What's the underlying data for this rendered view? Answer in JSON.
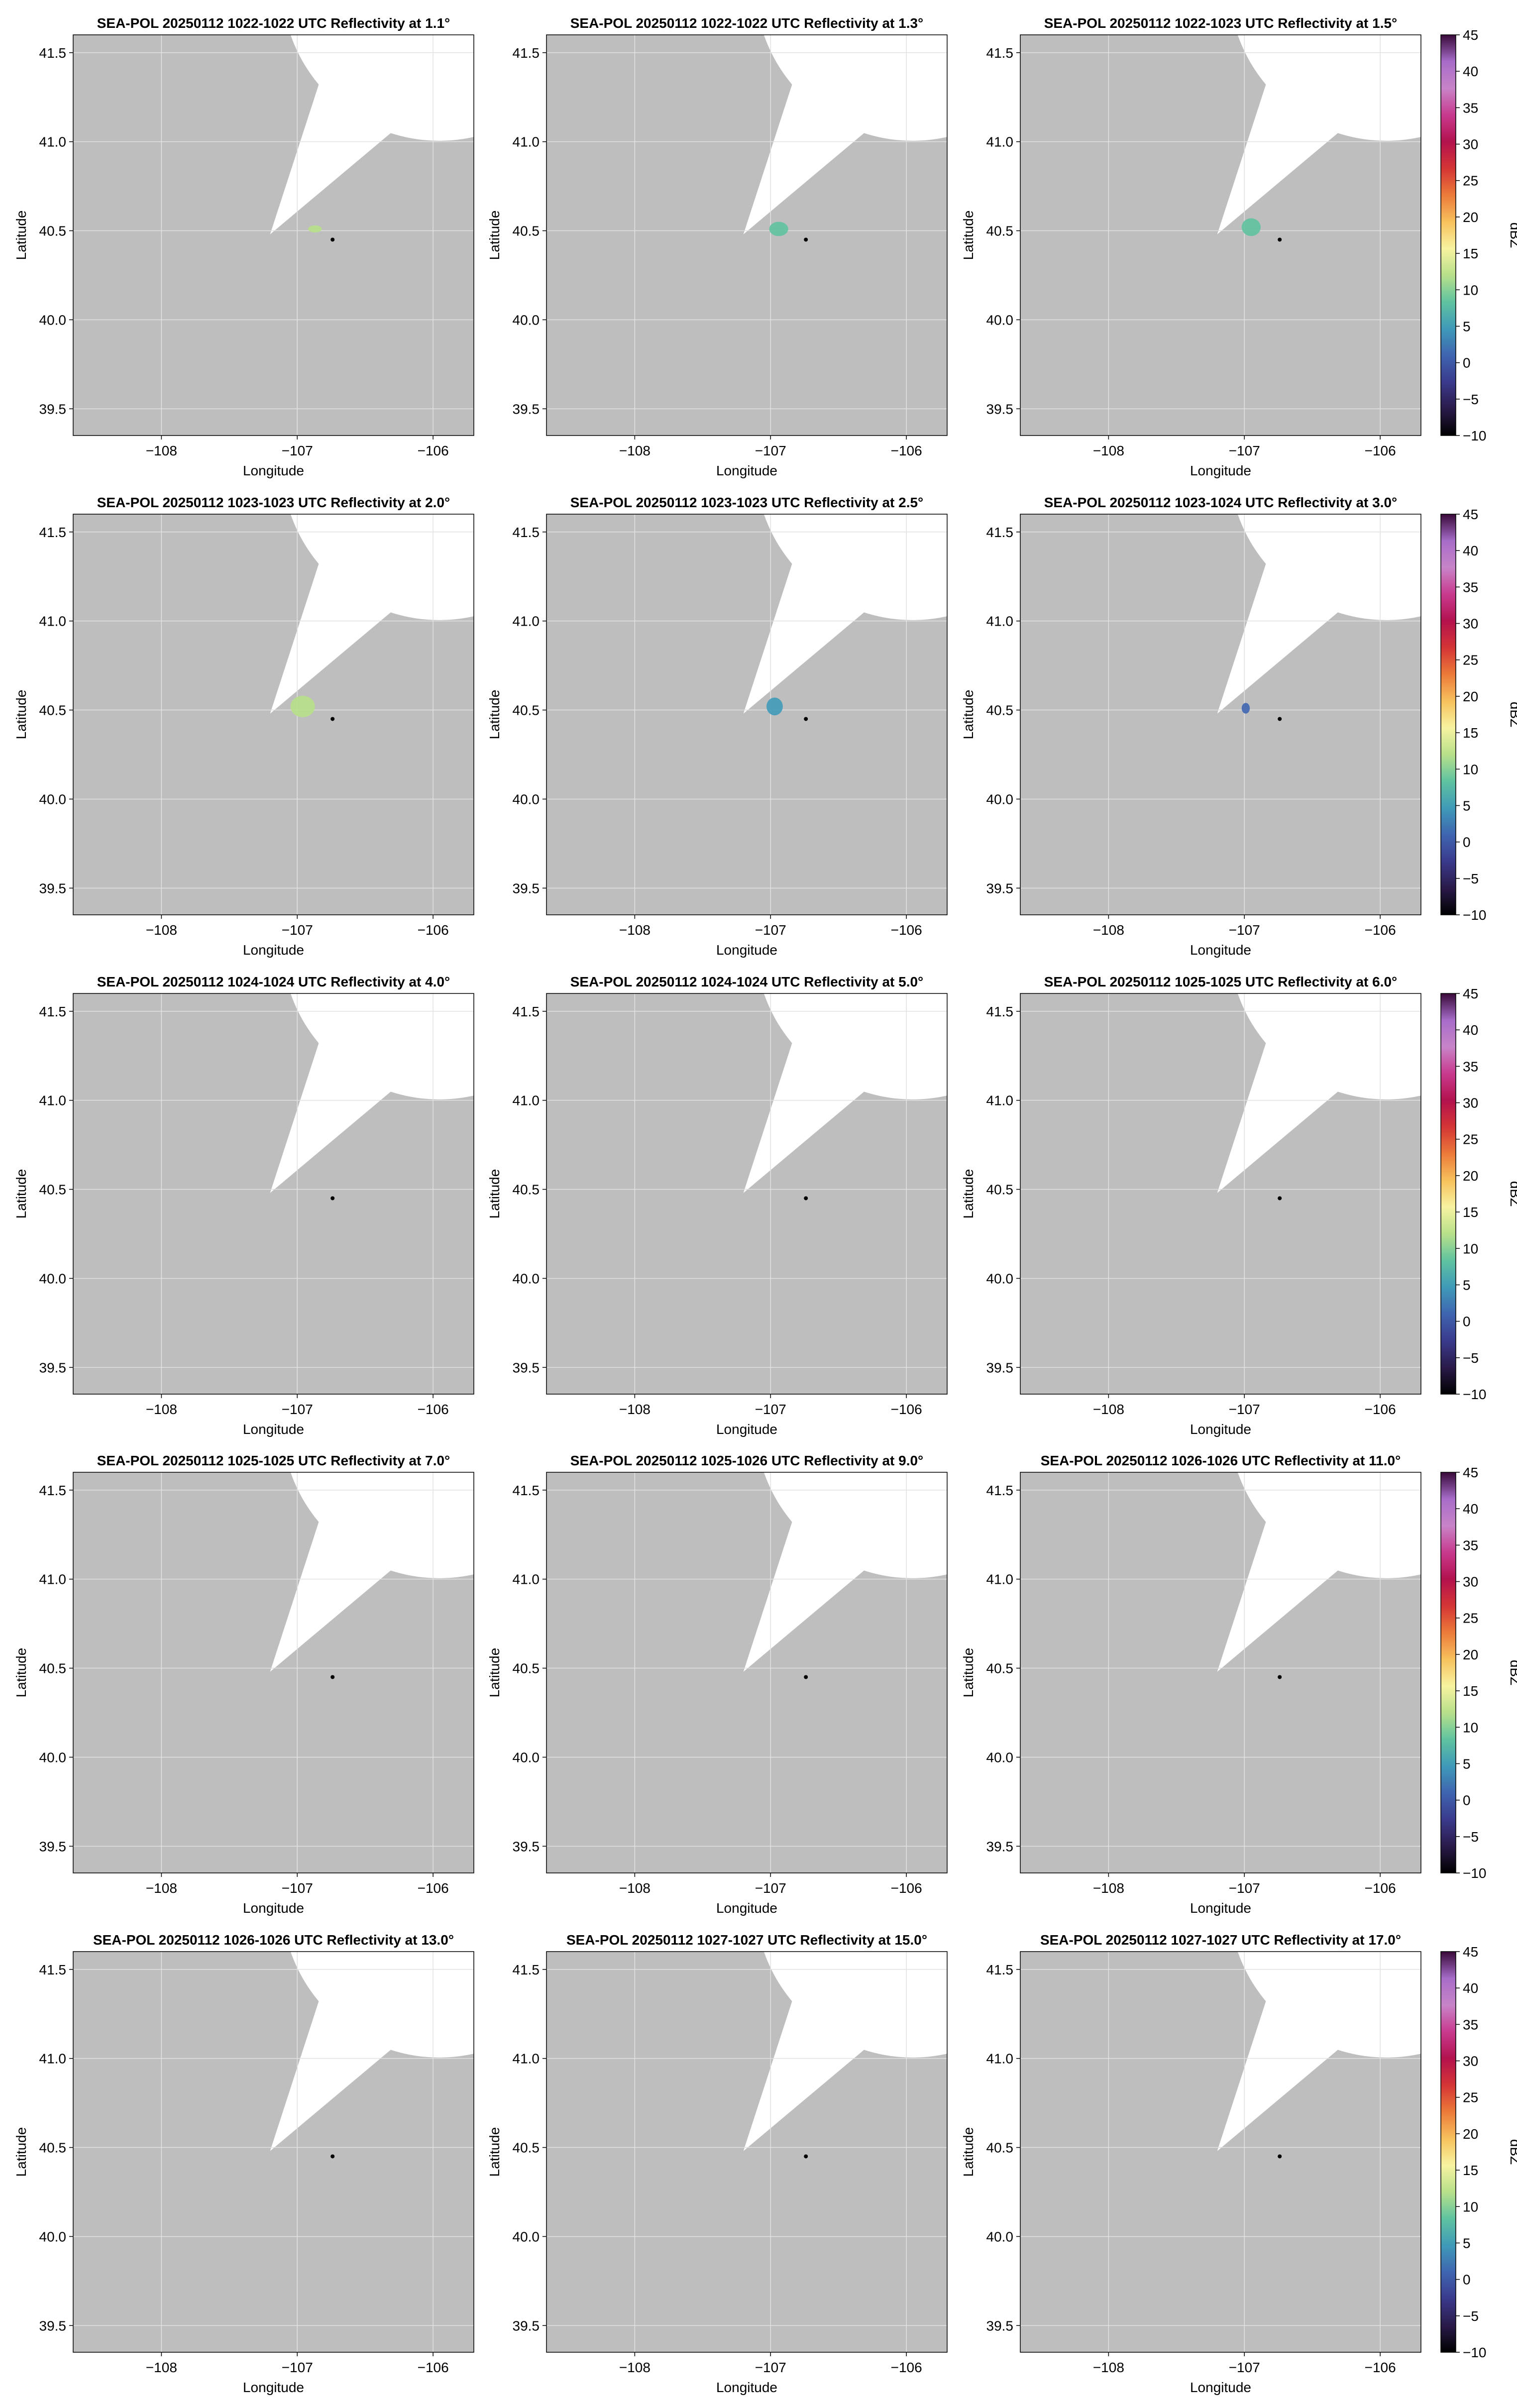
{
  "figure": {
    "title": ""
  },
  "colors": {
    "mask_fill": "#bebebe",
    "coverage_fill": "#ffffff",
    "grid": "#e2e2e2",
    "radar_marker": "#000000"
  },
  "colorbar": {
    "label": "dBZ",
    "ticks": [
      -10,
      -5,
      0,
      5,
      10,
      15,
      20,
      25,
      30,
      35,
      40,
      45
    ],
    "tick_labels": [
      "−10",
      "−5",
      "0",
      "5",
      "10",
      "15",
      "20",
      "25",
      "30",
      "35",
      "40",
      "45"
    ],
    "range": [
      -10,
      45
    ],
    "colormap": [
      "#000000",
      "#2a1a4a",
      "#3a3a8c",
      "#3f65b0",
      "#3f9ab8",
      "#5fc3a0",
      "#b8e08a",
      "#f7f3a0",
      "#f7c15c",
      "#ec7a3a",
      "#d43535",
      "#b3124e",
      "#c83a8e",
      "#c884c8",
      "#a66cc8",
      "#3a0a3a"
    ]
  },
  "chart_data": [
    {
      "type": "heatmap",
      "title": "SEA-POL 20250112 1022-1022 UTC Reflectivity at 1.1°",
      "xlabel": "Longitude",
      "ylabel": "Latitude",
      "xlim": [
        -108.65,
        -105.7
      ],
      "ylim": [
        39.35,
        41.6
      ],
      "xticks": [
        -108,
        -107,
        -106
      ],
      "xtick_labels": [
        "−108",
        "−107",
        "−106"
      ],
      "yticks": [
        39.5,
        40.0,
        40.5,
        41.0,
        41.5
      ],
      "ytick_labels": [
        "39.5",
        "40.0",
        "40.5",
        "41.0",
        "41.5"
      ],
      "grid": true,
      "radar_location": {
        "lon": -106.74,
        "lat": 40.45
      },
      "echo_blobs": [
        {
          "lon": -106.87,
          "lat": 40.51,
          "dlon": 0.05,
          "dlat": 0.02,
          "dbz": 12
        }
      ]
    },
    {
      "type": "heatmap",
      "title": "SEA-POL 20250112 1022-1022 UTC Reflectivity at 1.3°",
      "xlabel": "Longitude",
      "ylabel": "Latitude",
      "xlim": [
        -108.65,
        -105.7
      ],
      "ylim": [
        39.35,
        41.6
      ],
      "xticks": [
        -108,
        -107,
        -106
      ],
      "xtick_labels": [
        "−108",
        "−107",
        "−106"
      ],
      "yticks": [
        39.5,
        40.0,
        40.5,
        41.0,
        41.5
      ],
      "ytick_labels": [
        "39.5",
        "40.0",
        "40.5",
        "41.0",
        "41.5"
      ],
      "grid": true,
      "radar_location": {
        "lon": -106.74,
        "lat": 40.45
      },
      "echo_blobs": [
        {
          "lon": -106.94,
          "lat": 40.51,
          "dlon": 0.07,
          "dlat": 0.04,
          "dbz": 8
        }
      ]
    },
    {
      "type": "heatmap",
      "title": "SEA-POL 20250112 1022-1023 UTC Reflectivity at 1.5°",
      "xlabel": "Longitude",
      "ylabel": "Latitude",
      "xlim": [
        -108.65,
        -105.7
      ],
      "ylim": [
        39.35,
        41.6
      ],
      "xticks": [
        -108,
        -107,
        -106
      ],
      "xtick_labels": [
        "−108",
        "−107",
        "−106"
      ],
      "yticks": [
        39.5,
        40.0,
        40.5,
        41.0,
        41.5
      ],
      "ytick_labels": [
        "39.5",
        "40.0",
        "40.5",
        "41.0",
        "41.5"
      ],
      "grid": true,
      "radar_location": {
        "lon": -106.74,
        "lat": 40.45
      },
      "echo_blobs": [
        {
          "lon": -106.95,
          "lat": 40.52,
          "dlon": 0.07,
          "dlat": 0.05,
          "dbz": 10
        }
      ]
    },
    {
      "type": "heatmap",
      "title": "SEA-POL 20250112 1023-1023 UTC Reflectivity at 2.0°",
      "xlabel": "Longitude",
      "ylabel": "Latitude",
      "xlim": [
        -108.65,
        -105.7
      ],
      "ylim": [
        39.35,
        41.6
      ],
      "xticks": [
        -108,
        -107,
        -106
      ],
      "xtick_labels": [
        "−108",
        "−107",
        "−106"
      ],
      "yticks": [
        39.5,
        40.0,
        40.5,
        41.0,
        41.5
      ],
      "ytick_labels": [
        "39.5",
        "40.0",
        "40.5",
        "41.0",
        "41.5"
      ],
      "grid": true,
      "radar_location": {
        "lon": -106.74,
        "lat": 40.45
      },
      "echo_blobs": [
        {
          "lon": -106.96,
          "lat": 40.52,
          "dlon": 0.09,
          "dlat": 0.06,
          "dbz": 11
        }
      ]
    },
    {
      "type": "heatmap",
      "title": "SEA-POL 20250112 1023-1023 UTC Reflectivity at 2.5°",
      "xlabel": "Longitude",
      "ylabel": "Latitude",
      "xlim": [
        -108.65,
        -105.7
      ],
      "ylim": [
        39.35,
        41.6
      ],
      "xticks": [
        -108,
        -107,
        -106
      ],
      "xtick_labels": [
        "−108",
        "−107",
        "−106"
      ],
      "yticks": [
        39.5,
        40.0,
        40.5,
        41.0,
        41.5
      ],
      "ytick_labels": [
        "39.5",
        "40.0",
        "40.5",
        "41.0",
        "41.5"
      ],
      "grid": true,
      "radar_location": {
        "lon": -106.74,
        "lat": 40.45
      },
      "echo_blobs": [
        {
          "lon": -106.97,
          "lat": 40.52,
          "dlon": 0.06,
          "dlat": 0.05,
          "dbz": 5
        }
      ]
    },
    {
      "type": "heatmap",
      "title": "SEA-POL 20250112 1023-1024 UTC Reflectivity at 3.0°",
      "xlabel": "Longitude",
      "ylabel": "Latitude",
      "xlim": [
        -108.65,
        -105.7
      ],
      "ylim": [
        39.35,
        41.6
      ],
      "xticks": [
        -108,
        -107,
        -106
      ],
      "xtick_labels": [
        "−108",
        "−107",
        "−106"
      ],
      "yticks": [
        39.5,
        40.0,
        40.5,
        41.0,
        41.5
      ],
      "ytick_labels": [
        "39.5",
        "40.0",
        "40.5",
        "41.0",
        "41.5"
      ],
      "grid": true,
      "radar_location": {
        "lon": -106.74,
        "lat": 40.45
      },
      "echo_blobs": [
        {
          "lon": -106.99,
          "lat": 40.51,
          "dlon": 0.03,
          "dlat": 0.03,
          "dbz": 1
        }
      ]
    },
    {
      "type": "heatmap",
      "title": "SEA-POL 20250112 1024-1024 UTC Reflectivity at 4.0°",
      "xlabel": "Longitude",
      "ylabel": "Latitude",
      "xlim": [
        -108.65,
        -105.7
      ],
      "ylim": [
        39.35,
        41.6
      ],
      "xticks": [
        -108,
        -107,
        -106
      ],
      "xtick_labels": [
        "−108",
        "−107",
        "−106"
      ],
      "yticks": [
        39.5,
        40.0,
        40.5,
        41.0,
        41.5
      ],
      "ytick_labels": [
        "39.5",
        "40.0",
        "40.5",
        "41.0",
        "41.5"
      ],
      "grid": true,
      "radar_location": {
        "lon": -106.74,
        "lat": 40.45
      },
      "echo_blobs": []
    },
    {
      "type": "heatmap",
      "title": "SEA-POL 20250112 1024-1024 UTC Reflectivity at 5.0°",
      "xlabel": "Longitude",
      "ylabel": "Latitude",
      "xlim": [
        -108.65,
        -105.7
      ],
      "ylim": [
        39.35,
        41.6
      ],
      "xticks": [
        -108,
        -107,
        -106
      ],
      "xtick_labels": [
        "−108",
        "−107",
        "−106"
      ],
      "yticks": [
        39.5,
        40.0,
        40.5,
        41.0,
        41.5
      ],
      "ytick_labels": [
        "39.5",
        "40.0",
        "40.5",
        "41.0",
        "41.5"
      ],
      "grid": true,
      "radar_location": {
        "lon": -106.74,
        "lat": 40.45
      },
      "echo_blobs": []
    },
    {
      "type": "heatmap",
      "title": "SEA-POL 20250112 1025-1025 UTC Reflectivity at 6.0°",
      "xlabel": "Longitude",
      "ylabel": "Latitude",
      "xlim": [
        -108.65,
        -105.7
      ],
      "ylim": [
        39.35,
        41.6
      ],
      "xticks": [
        -108,
        -107,
        -106
      ],
      "xtick_labels": [
        "−108",
        "−107",
        "−106"
      ],
      "yticks": [
        39.5,
        40.0,
        40.5,
        41.0,
        41.5
      ],
      "ytick_labels": [
        "39.5",
        "40.0",
        "40.5",
        "41.0",
        "41.5"
      ],
      "grid": true,
      "radar_location": {
        "lon": -106.74,
        "lat": 40.45
      },
      "echo_blobs": []
    },
    {
      "type": "heatmap",
      "title": "SEA-POL 20250112 1025-1025 UTC Reflectivity at 7.0°",
      "xlabel": "Longitude",
      "ylabel": "Latitude",
      "xlim": [
        -108.65,
        -105.7
      ],
      "ylim": [
        39.35,
        41.6
      ],
      "xticks": [
        -108,
        -107,
        -106
      ],
      "xtick_labels": [
        "−108",
        "−107",
        "−106"
      ],
      "yticks": [
        39.5,
        40.0,
        40.5,
        41.0,
        41.5
      ],
      "ytick_labels": [
        "39.5",
        "40.0",
        "40.5",
        "41.0",
        "41.5"
      ],
      "grid": true,
      "radar_location": {
        "lon": -106.74,
        "lat": 40.45
      },
      "echo_blobs": []
    },
    {
      "type": "heatmap",
      "title": "SEA-POL 20250112 1025-1026 UTC Reflectivity at 9.0°",
      "xlabel": "Longitude",
      "ylabel": "Latitude",
      "xlim": [
        -108.65,
        -105.7
      ],
      "ylim": [
        39.35,
        41.6
      ],
      "xticks": [
        -108,
        -107,
        -106
      ],
      "xtick_labels": [
        "−108",
        "−107",
        "−106"
      ],
      "yticks": [
        39.5,
        40.0,
        40.5,
        41.0,
        41.5
      ],
      "ytick_labels": [
        "39.5",
        "40.0",
        "40.5",
        "41.0",
        "41.5"
      ],
      "grid": true,
      "radar_location": {
        "lon": -106.74,
        "lat": 40.45
      },
      "echo_blobs": []
    },
    {
      "type": "heatmap",
      "title": "SEA-POL 20250112 1026-1026 UTC Reflectivity at 11.0°",
      "xlabel": "Longitude",
      "ylabel": "Latitude",
      "xlim": [
        -108.65,
        -105.7
      ],
      "ylim": [
        39.35,
        41.6
      ],
      "xticks": [
        -108,
        -107,
        -106
      ],
      "xtick_labels": [
        "−108",
        "−107",
        "−106"
      ],
      "yticks": [
        39.5,
        40.0,
        40.5,
        41.0,
        41.5
      ],
      "ytick_labels": [
        "39.5",
        "40.0",
        "40.5",
        "41.0",
        "41.5"
      ],
      "grid": true,
      "radar_location": {
        "lon": -106.74,
        "lat": 40.45
      },
      "echo_blobs": []
    },
    {
      "type": "heatmap",
      "title": "SEA-POL 20250112 1026-1026 UTC Reflectivity at 13.0°",
      "xlabel": "Longitude",
      "ylabel": "Latitude",
      "xlim": [
        -108.65,
        -105.7
      ],
      "ylim": [
        39.35,
        41.6
      ],
      "xticks": [
        -108,
        -107,
        -106
      ],
      "xtick_labels": [
        "−108",
        "−107",
        "−106"
      ],
      "yticks": [
        39.5,
        40.0,
        40.5,
        41.0,
        41.5
      ],
      "ytick_labels": [
        "39.5",
        "40.0",
        "40.5",
        "41.0",
        "41.5"
      ],
      "grid": true,
      "radar_location": {
        "lon": -106.74,
        "lat": 40.45
      },
      "echo_blobs": []
    },
    {
      "type": "heatmap",
      "title": "SEA-POL 20250112 1027-1027 UTC Reflectivity at 15.0°",
      "xlabel": "Longitude",
      "ylabel": "Latitude",
      "xlim": [
        -108.65,
        -105.7
      ],
      "ylim": [
        39.35,
        41.6
      ],
      "xticks": [
        -108,
        -107,
        -106
      ],
      "xtick_labels": [
        "−108",
        "−107",
        "−106"
      ],
      "yticks": [
        39.5,
        40.0,
        40.5,
        41.0,
        41.5
      ],
      "ytick_labels": [
        "39.5",
        "40.0",
        "40.5",
        "41.0",
        "41.5"
      ],
      "grid": true,
      "radar_location": {
        "lon": -106.74,
        "lat": 40.45
      },
      "echo_blobs": []
    },
    {
      "type": "heatmap",
      "title": "SEA-POL 20250112 1027-1027 UTC Reflectivity at 17.0°",
      "xlabel": "Longitude",
      "ylabel": "Latitude",
      "xlim": [
        -108.65,
        -105.7
      ],
      "ylim": [
        39.35,
        41.6
      ],
      "xticks": [
        -108,
        -107,
        -106
      ],
      "xtick_labels": [
        "−108",
        "−107",
        "−106"
      ],
      "yticks": [
        39.5,
        40.0,
        40.5,
        41.0,
        41.5
      ],
      "ytick_labels": [
        "39.5",
        "40.0",
        "40.5",
        "41.0",
        "41.5"
      ],
      "grid": true,
      "radar_location": {
        "lon": -106.74,
        "lat": 40.45
      },
      "echo_blobs": []
    }
  ]
}
